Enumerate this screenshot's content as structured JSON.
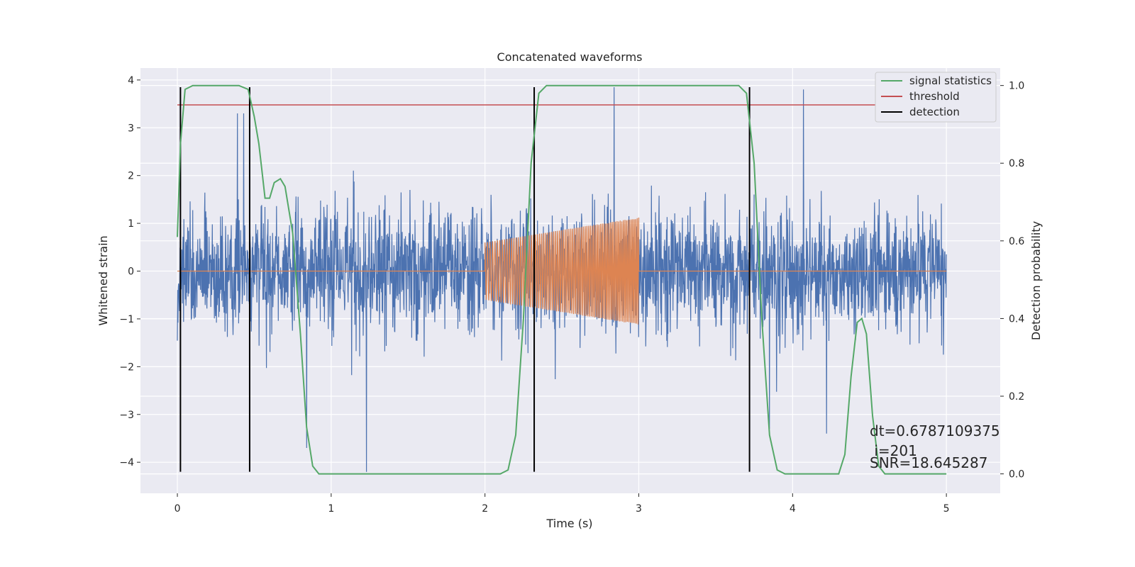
{
  "chart_data": {
    "type": "line",
    "title": "Concatenated waveforms",
    "xlabel": "Time (s)",
    "ylabel": "Whitened strain",
    "y2label": "Detection probability",
    "xlim": [
      -0.24,
      5.35
    ],
    "ylim": [
      -4.65,
      4.25
    ],
    "y2lim": [
      -0.05,
      1.045
    ],
    "x_ticks": [
      0,
      1,
      2,
      3,
      4,
      5
    ],
    "y_ticks": [
      -4,
      -3,
      -2,
      -1,
      0,
      1,
      2,
      3,
      4
    ],
    "y2_ticks": [
      0.0,
      0.2,
      0.4,
      0.6,
      0.8,
      1.0
    ],
    "x_tick_labels": [
      "0",
      "1",
      "2",
      "3",
      "4",
      "5"
    ],
    "y_tick_labels": [
      "−4",
      "−3",
      "−2",
      "−1",
      "0",
      "1",
      "2",
      "3",
      "4"
    ],
    "y2_tick_labels": [
      "0.0",
      "0.2",
      "0.4",
      "0.6",
      "0.8",
      "1.0"
    ],
    "grid": true,
    "legend_position": "top-right",
    "legend": [
      {
        "label": "signal statistics",
        "color": "#55a868"
      },
      {
        "label": "threshold",
        "color": "#c44e52"
      },
      {
        "label": "detection",
        "color": "#000000"
      }
    ],
    "colors": {
      "strain": "#4c72b0",
      "template": "#dd8452",
      "statistics": "#55a868",
      "threshold": "#c44e52",
      "detection": "#000000",
      "axes_bg": "#eaeaf2",
      "grid": "#ffffff"
    },
    "strain": {
      "x_range": [
        0,
        5
      ],
      "envelope_abs_max": 3.9,
      "typical_abs": 1.6,
      "spikes": [
        {
          "x": 1.23,
          "y": -4.2
        },
        {
          "x": 2.84,
          "y": 3.85
        },
        {
          "x": 4.07,
          "y": 3.8
        },
        {
          "x": 0.84,
          "y": -3.7
        },
        {
          "x": 4.22,
          "y": -3.4
        },
        {
          "x": 3.85,
          "y": -3.3
        },
        {
          "x": 0.43,
          "y": 3.3
        },
        {
          "x": 0.39,
          "y": 3.3
        }
      ]
    },
    "template": {
      "start": 2.0,
      "end": 3.0,
      "amp_start": 0.6,
      "amp_end": 1.12,
      "cycles": 60
    },
    "threshold": {
      "y": 0.95,
      "x_range": [
        0,
        5
      ]
    },
    "detections": [
      0.02,
      0.47,
      2.32,
      3.72
    ],
    "detection_span": [
      -4.2,
      3.85
    ],
    "statistics": [
      [
        0.0,
        0.61
      ],
      [
        0.02,
        0.85
      ],
      [
        0.05,
        0.99
      ],
      [
        0.1,
        1.0
      ],
      [
        0.4,
        1.0
      ],
      [
        0.46,
        0.99
      ],
      [
        0.5,
        0.92
      ],
      [
        0.53,
        0.85
      ],
      [
        0.55,
        0.78
      ],
      [
        0.57,
        0.71
      ],
      [
        0.6,
        0.71
      ],
      [
        0.63,
        0.75
      ],
      [
        0.67,
        0.76
      ],
      [
        0.7,
        0.74
      ],
      [
        0.75,
        0.62
      ],
      [
        0.8,
        0.36
      ],
      [
        0.84,
        0.12
      ],
      [
        0.88,
        0.02
      ],
      [
        0.92,
        0.0
      ],
      [
        2.1,
        0.0
      ],
      [
        2.15,
        0.01
      ],
      [
        2.2,
        0.1
      ],
      [
        2.25,
        0.4
      ],
      [
        2.3,
        0.8
      ],
      [
        2.35,
        0.98
      ],
      [
        2.4,
        1.0
      ],
      [
        3.65,
        1.0
      ],
      [
        3.7,
        0.98
      ],
      [
        3.75,
        0.8
      ],
      [
        3.8,
        0.4
      ],
      [
        3.85,
        0.1
      ],
      [
        3.9,
        0.01
      ],
      [
        3.95,
        0.0
      ],
      [
        4.3,
        0.0
      ],
      [
        4.34,
        0.05
      ],
      [
        4.38,
        0.25
      ],
      [
        4.42,
        0.39
      ],
      [
        4.45,
        0.4
      ],
      [
        4.48,
        0.36
      ],
      [
        4.52,
        0.15
      ],
      [
        4.56,
        0.02
      ],
      [
        4.6,
        0.0
      ],
      [
        5.0,
        0.0
      ]
    ],
    "annotations": [
      "dt=0.6787109375",
      " i=201",
      "SNR=18.645287"
    ]
  }
}
